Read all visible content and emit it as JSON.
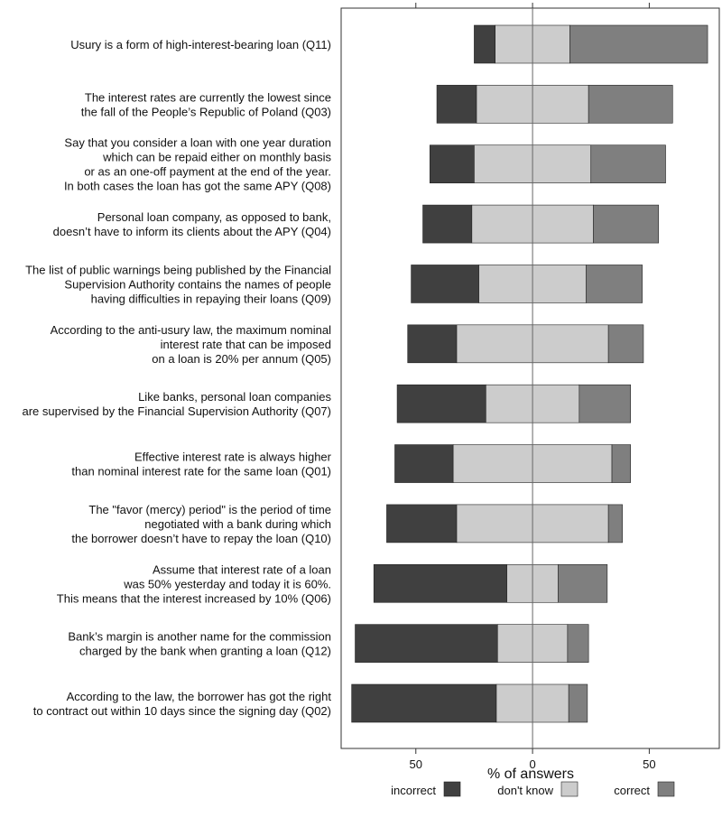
{
  "chart_data": {
    "type": "bar",
    "subtype": "diverging-stacked-horizontal",
    "xlabel": "% of answers",
    "xticks": [
      -50,
      0,
      50
    ],
    "xtick_labels": [
      "50",
      "0",
      "50"
    ],
    "xlim": [
      -82,
      80
    ],
    "grid": false,
    "legend_position": "bottom",
    "colors": {
      "incorrect": "#404040",
      "dont_know": "#cccccc",
      "correct": "#7f7f7f"
    },
    "series": [
      {
        "name": "incorrect",
        "values": [
          9,
          17,
          19,
          21,
          29,
          21,
          38,
          25,
          30,
          57,
          61,
          62
        ]
      },
      {
        "name": "don't know",
        "values": [
          32,
          48,
          50,
          52,
          46,
          65,
          40,
          68,
          65,
          22,
          30,
          31
        ]
      },
      {
        "name": "correct",
        "values": [
          59,
          36,
          32,
          28,
          24,
          15,
          22,
          8,
          6,
          21,
          9,
          8
        ]
      }
    ],
    "categories": [
      [
        "Usury is a form of high-interest-bearing loan (Q11)"
      ],
      [
        "The interest rates are currently the lowest since",
        "the fall of the People’s Republic of Poland (Q03)"
      ],
      [
        "Say that you consider a loan with one year duration",
        "which can be repaid either on monthly basis",
        "or as an one-off payment at the end of the year.",
        "In both cases the loan has got the same APY (Q08)"
      ],
      [
        "Personal loan company, as opposed to bank,",
        "doesn’t have to inform its clients about the APY (Q04)"
      ],
      [
        "The list of public warnings being published by the Financial",
        "Supervision Authority contains the names of people",
        "having difficulties in repaying their loans (Q09)"
      ],
      [
        "According to the anti-usury law, the maximum nominal",
        "interest rate that can be imposed",
        "on a loan is 20% per annum (Q05)"
      ],
      [
        "Like banks, personal loan companies",
        "are supervised by the Financial Supervision Authority (Q07)"
      ],
      [
        "Effective interest rate is always higher",
        "than nominal interest rate for the same loan (Q01)"
      ],
      [
        "The \"favor (mercy) period\" is the period of time",
        "negotiated with a bank during which",
        "the borrower doesn’t have to repay the loan (Q10)"
      ],
      [
        "Assume that interest rate of a loan",
        "was 50% yesterday and today it is 60%.",
        "This means that the interest increased by 10% (Q06)"
      ],
      [
        "Bank’s margin is another name for the commission",
        "charged by the bank when granting a loan (Q12)"
      ],
      [
        "According to the law, the borrower has got the right",
        "to contract out within 10 days since the signing day (Q02)"
      ]
    ]
  }
}
